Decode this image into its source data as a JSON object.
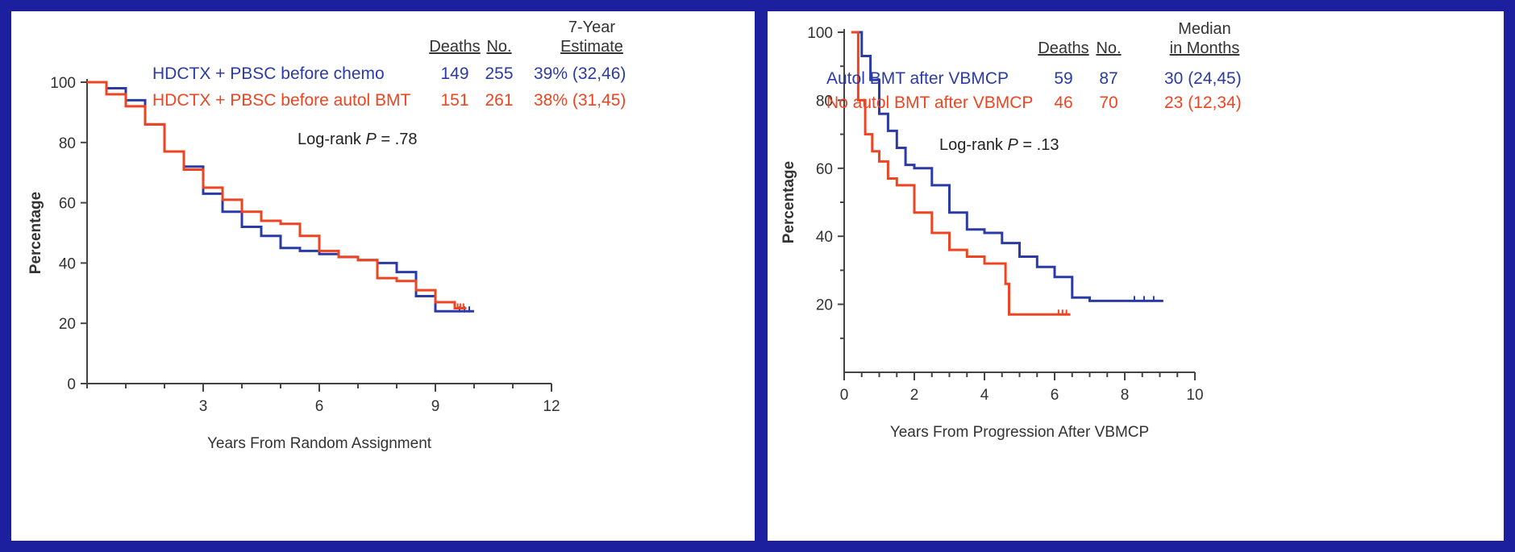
{
  "chart_data": [
    {
      "type": "line",
      "title": "",
      "xlabel": "Years From Random Assignment",
      "ylabel": "Percentage",
      "xlim": [
        0,
        12
      ],
      "ylim": [
        0,
        100
      ],
      "xticks": [
        "3",
        "6",
        "9",
        "12"
      ],
      "yticks": [
        "0",
        "20",
        "40",
        "60",
        "80",
        "100"
      ],
      "grid": false,
      "legend_position": "top-right",
      "table_headers": [
        "Deaths",
        "No.",
        "7-Year",
        "Estimate"
      ],
      "annotation_prefix": "Log-rank ",
      "annotation_italic": "P",
      "annotation_suffix": " = .78",
      "series": [
        {
          "name": "HDCTX + PBSC before chemo",
          "color": "#2b3ba6",
          "deaths": "149",
          "no": "255",
          "estimate": "39% (32,46)",
          "x": [
            0,
            0.5,
            1,
            1.5,
            2,
            2.5,
            3,
            3.5,
            4,
            4.5,
            5,
            5.5,
            6,
            6.5,
            7,
            7.5,
            8,
            8.5,
            9,
            9.5,
            10
          ],
          "y": [
            100,
            98,
            94,
            86,
            77,
            72,
            63,
            57,
            52,
            49,
            45,
            44,
            43,
            42,
            41,
            40,
            37,
            29,
            24,
            24,
            24
          ]
        },
        {
          "name": "HDCTX + PBSC before autol BMT",
          "color": "#ee4422",
          "deaths": "151",
          "no": "261",
          "estimate": "38% (31,45)",
          "x": [
            0,
            0.5,
            1,
            1.5,
            2,
            2.5,
            3,
            3.5,
            4,
            4.5,
            5,
            5.5,
            6,
            6.5,
            7,
            7.5,
            8,
            8.5,
            9,
            9.5,
            9.8
          ],
          "y": [
            100,
            96,
            92,
            86,
            77,
            71,
            65,
            61,
            57,
            54,
            53,
            49,
            44,
            42,
            41,
            35,
            34,
            31,
            27,
            25,
            25
          ]
        }
      ]
    },
    {
      "type": "line",
      "title": "",
      "xlabel": "Years From Progression After VBMCP",
      "ylabel": "Percentage",
      "xlim": [
        0,
        10
      ],
      "ylim": [
        0,
        100
      ],
      "xticks": [
        "0",
        "2",
        "4",
        "6",
        "8",
        "10"
      ],
      "yticks": [
        "20",
        "40",
        "60",
        "80",
        "100"
      ],
      "grid": false,
      "legend_position": "top-right",
      "table_headers": [
        "Deaths",
        "No.",
        "Median",
        "in Months"
      ],
      "annotation_prefix": "Log-rank ",
      "annotation_italic": "P",
      "annotation_suffix": " = .13",
      "series": [
        {
          "name": "Autol BMT after VBMCP",
          "color": "#2b3ba6",
          "deaths": "59",
          "no": "87",
          "estimate": "30 (24,45)",
          "x": [
            0.25,
            0.5,
            0.75,
            1,
            1.25,
            1.5,
            1.75,
            2,
            2.5,
            3,
            3.5,
            4,
            4.5,
            5,
            5.5,
            6,
            6.5,
            7,
            8,
            9.1
          ],
          "y": [
            100,
            93,
            86,
            76,
            71,
            66,
            61,
            60,
            55,
            47,
            42,
            41,
            38,
            34,
            31,
            28,
            22,
            21,
            21,
            21
          ]
        },
        {
          "name": "No autol BMT after VBMCP",
          "color": "#ee4422",
          "deaths": "46",
          "no": "70",
          "estimate": "23 (12,34)",
          "x": [
            0.2,
            0.4,
            0.6,
            0.8,
            1,
            1.25,
            1.5,
            2,
            2.5,
            3,
            3.5,
            4,
            4.5,
            4.6,
            4.7,
            5,
            5.5,
            6,
            6.45
          ],
          "y": [
            100,
            80,
            70,
            65,
            62,
            57,
            55,
            47,
            41,
            36,
            34,
            32,
            32,
            26,
            17,
            17,
            17,
            17,
            17
          ]
        }
      ]
    }
  ]
}
